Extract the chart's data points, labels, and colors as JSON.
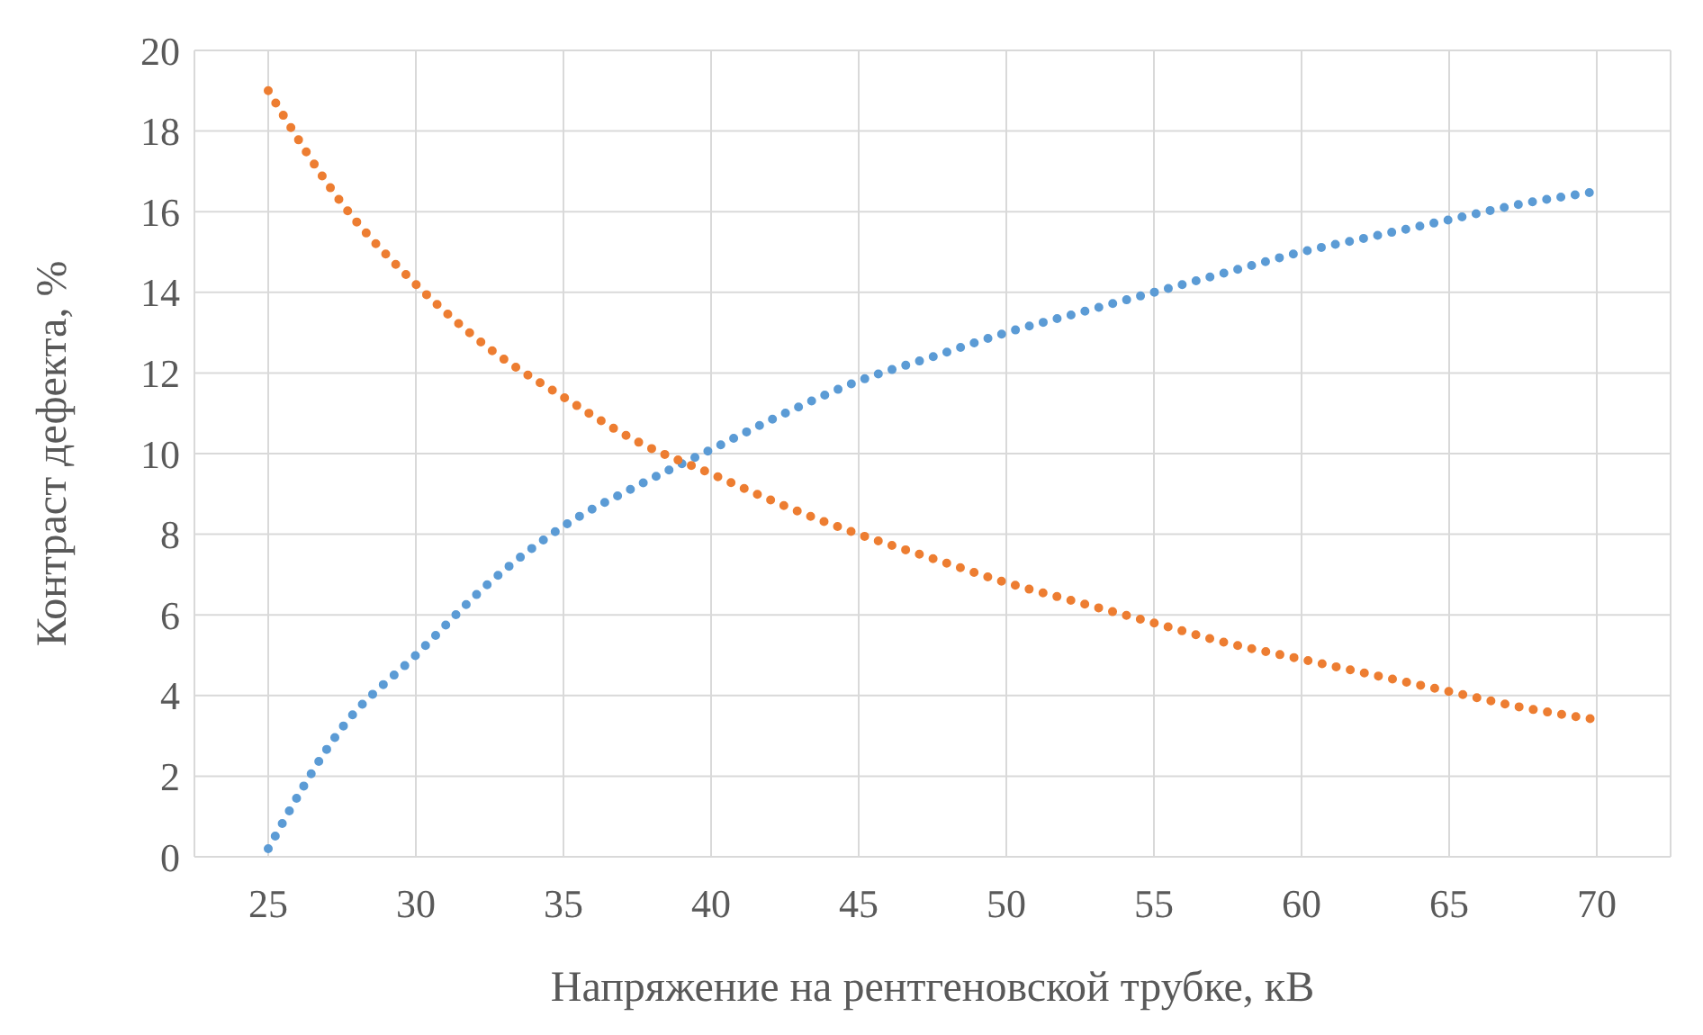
{
  "chart_data": {
    "type": "line",
    "xlabel": "Напряжение на рентгеновской трубке, кВ",
    "ylabel": "Контраст дефекта, %",
    "x": [
      25,
      27.5,
      30,
      32.5,
      35,
      37.5,
      40,
      42.5,
      45,
      47.5,
      50,
      52.5,
      55,
      57.5,
      60,
      62.5,
      65,
      67.5,
      70
    ],
    "series": [
      {
        "color": "#5b9bd5",
        "values": [
          0.2,
          3.2,
          5.0,
          6.8,
          8.2,
          9.2,
          10.1,
          11.0,
          11.8,
          12.4,
          13.0,
          13.5,
          14.0,
          14.5,
          15.0,
          15.4,
          15.8,
          16.2,
          16.5
        ]
      },
      {
        "color": "#ed7d31",
        "values": [
          19.0,
          16.2,
          14.2,
          12.6,
          11.4,
          10.3,
          9.5,
          8.7,
          8.0,
          7.4,
          6.8,
          6.3,
          5.8,
          5.3,
          4.9,
          4.5,
          4.1,
          3.7,
          3.4
        ]
      }
    ],
    "xlim": [
      22.5,
      72.5
    ],
    "xticks": [
      25,
      30,
      35,
      40,
      45,
      50,
      55,
      60,
      65,
      70
    ],
    "ylim": [
      0,
      20
    ],
    "yticks": [
      0,
      2,
      4,
      6,
      8,
      10,
      12,
      14,
      16,
      18,
      20
    ],
    "grid": true,
    "legend": false,
    "marker": "none",
    "line_style": "dotted"
  }
}
